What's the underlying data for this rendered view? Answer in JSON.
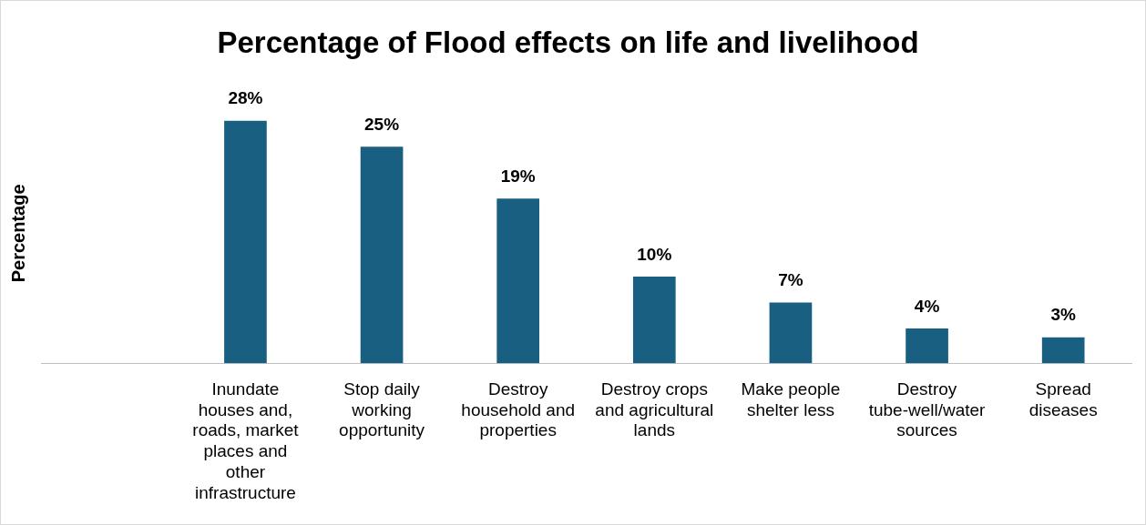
{
  "chart_data": {
    "type": "bar",
    "title": "Percentage of Flood effects on life and livelihood",
    "ylabel": "Percentage",
    "categories": [
      null,
      "Inundate houses and, roads, market places and other infrastructure",
      "Stop daily working opportunity",
      "Destroy household and properties",
      "Destroy crops and agricultural lands",
      "Make people shelter less",
      "Destroy tube-well/water sources",
      "Spread diseases"
    ],
    "values": [
      null,
      28,
      25,
      19,
      10,
      7,
      4,
      3
    ],
    "value_labels": [
      null,
      "28%",
      "25%",
      "19%",
      "10%",
      "7%",
      "4%",
      "3%"
    ],
    "color": "#195f81",
    "grid": false,
    "legend": false
  }
}
